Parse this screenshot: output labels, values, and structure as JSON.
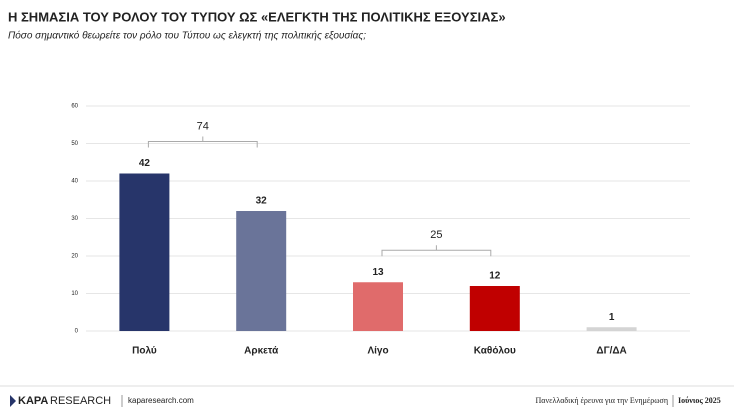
{
  "chart_data": {
    "type": "bar",
    "title": "Η ΣΗΜΑΣΙΑ ΤΟΥ ΡΟΛΟΥ ΤΟΥ ΤΥΠΟΥ ΩΣ «ΕΛΕΓΚΤΗ ΤΗΣ ΠΟΛΙΤΙΚΗΣ ΕΞΟΥΣΙΑΣ»",
    "subtitle": "Πόσο σημαντικό θεωρείτε τον ρόλο του Τύπου ως ελεγκτή της πολιτικής εξουσίας;",
    "categories": [
      "Πολύ",
      "Αρκετά",
      "Λίγο",
      "Καθόλου",
      "ΔΓ/ΔΑ"
    ],
    "values": [
      42,
      32,
      13,
      12,
      1
    ],
    "colors": [
      "#27356a",
      "#6a7499",
      "#e06b6b",
      "#c00000",
      "#d4d4d4"
    ],
    "ylim": [
      0,
      60
    ],
    "yticks": [
      0,
      10,
      20,
      30,
      40,
      50,
      60
    ],
    "grid": true,
    "group_totals": [
      {
        "value": 74,
        "categories": [
          "Πολύ",
          "Αρκετά"
        ]
      },
      {
        "value": 25,
        "categories": [
          "Λίγο",
          "Καθόλου"
        ]
      }
    ]
  },
  "footer": {
    "brand_bold": "KAPA",
    "brand": "RESEARCH",
    "website": "kaparesearch.com",
    "survey": "Πανελλαδική έρευνα για την Ενημέρωση",
    "date": "Ιούνιος 2025"
  }
}
